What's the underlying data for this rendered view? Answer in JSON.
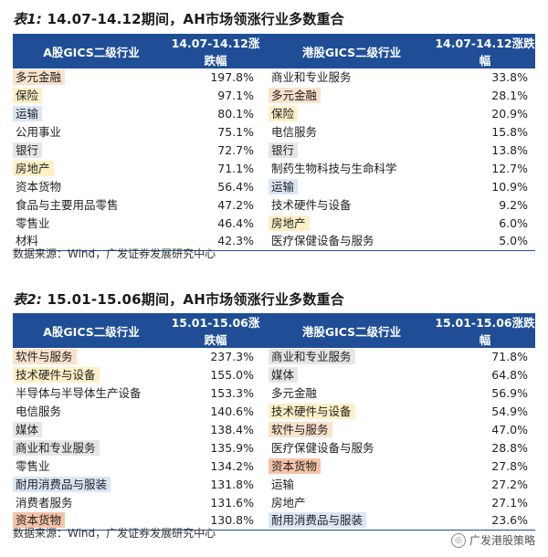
{
  "colors": {
    "header_bg": "#1f4e96",
    "orange": "#fbe2cc",
    "blue": "#dbe6f5",
    "yellow": "#fdf0c6",
    "gray": "#e6e6e6",
    "salmon": "#f5c3a8"
  },
  "table1": {
    "title_prefix": "表1:",
    "title_text": "14.07-14.12期间，AH市场领涨行业多数重合",
    "headers": [
      "A股GICS二级行业",
      "14.07-14.12涨跌幅",
      "港股GICS二级行业",
      "14.07-14.12涨跌幅"
    ],
    "rows": [
      {
        "a_name": "多元金融",
        "a_val": "197.8%",
        "a_color": "orange",
        "h_name": "商业和专业服务",
        "h_val": "33.8%",
        "h_color": "none"
      },
      {
        "a_name": "保险",
        "a_val": "97.1%",
        "a_color": "yellow",
        "h_name": "多元金融",
        "h_val": "28.1%",
        "h_color": "orange"
      },
      {
        "a_name": "运输",
        "a_val": "80.1%",
        "a_color": "blue",
        "h_name": "保险",
        "h_val": "20.9%",
        "h_color": "yellow"
      },
      {
        "a_name": "公用事业",
        "a_val": "75.1%",
        "a_color": "none",
        "h_name": "电信服务",
        "h_val": "15.8%",
        "h_color": "none"
      },
      {
        "a_name": "银行",
        "a_val": "72.7%",
        "a_color": "gray",
        "h_name": "银行",
        "h_val": "13.8%",
        "h_color": "gray"
      },
      {
        "a_name": "房地产",
        "a_val": "71.1%",
        "a_color": "yellow",
        "h_name": "制药生物科技与生命科学",
        "h_val": "12.7%",
        "h_color": "none"
      },
      {
        "a_name": "资本货物",
        "a_val": "56.4%",
        "a_color": "none",
        "h_name": "运输",
        "h_val": "10.9%",
        "h_color": "blue"
      },
      {
        "a_name": "食品与主要用品零售",
        "a_val": "47.2%",
        "a_color": "none",
        "h_name": "技术硬件与设备",
        "h_val": "9.2%",
        "h_color": "none"
      },
      {
        "a_name": "零售业",
        "a_val": "46.4%",
        "a_color": "none",
        "h_name": "房地产",
        "h_val": "6.0%",
        "h_color": "yellow"
      },
      {
        "a_name": "材料",
        "a_val": "42.3%",
        "a_color": "none",
        "h_name": "医疗保健设备与服务",
        "h_val": "5.0%",
        "h_color": "none"
      }
    ],
    "source": "数据来源：Wind，广发证券发展研究中心"
  },
  "table2": {
    "title_prefix": "表2:",
    "title_text": "15.01-15.06期间，AH市场领涨行业多数重合",
    "headers": [
      "A股GICS二级行业",
      "15.01-15.06涨跌幅",
      "港股GICS二级行业",
      "15.01-15.06涨跌幅"
    ],
    "rows": [
      {
        "a_name": "软件与服务",
        "a_val": "237.3%",
        "a_color": "orange",
        "h_name": "商业和专业服务",
        "h_val": "71.8%",
        "h_color": "gray"
      },
      {
        "a_name": "技术硬件与设备",
        "a_val": "155.0%",
        "a_color": "yellow",
        "h_name": "媒体",
        "h_val": "64.8%",
        "h_color": "gray"
      },
      {
        "a_name": "半导体与半导体生产设备",
        "a_val": "153.3%",
        "a_color": "none",
        "h_name": "多元金融",
        "h_val": "56.9%",
        "h_color": "none"
      },
      {
        "a_name": "电信服务",
        "a_val": "140.6%",
        "a_color": "none",
        "h_name": "技术硬件与设备",
        "h_val": "54.9%",
        "h_color": "yellow"
      },
      {
        "a_name": "媒体",
        "a_val": "138.4%",
        "a_color": "gray",
        "h_name": "软件与服务",
        "h_val": "47.0%",
        "h_color": "orange"
      },
      {
        "a_name": "商业和专业服务",
        "a_val": "135.9%",
        "a_color": "gray",
        "h_name": "医疗保健设备与服务",
        "h_val": "28.8%",
        "h_color": "none"
      },
      {
        "a_name": "零售业",
        "a_val": "134.2%",
        "a_color": "none",
        "h_name": "资本货物",
        "h_val": "27.8%",
        "h_color": "salmon"
      },
      {
        "a_name": "耐用消费品与服装",
        "a_val": "131.8%",
        "a_color": "blue",
        "h_name": "运输",
        "h_val": "27.2%",
        "h_color": "none"
      },
      {
        "a_name": "消费者服务",
        "a_val": "131.6%",
        "a_color": "none",
        "h_name": "房地产",
        "h_val": "27.1%",
        "h_color": "none"
      },
      {
        "a_name": "资本货物",
        "a_val": "130.8%",
        "a_color": "salmon",
        "h_name": "耐用消费品与服装",
        "h_val": "23.6%",
        "h_color": "blue"
      }
    ],
    "source": "数据来源：Wind，广发证券发展研究中心"
  },
  "watermark": {
    "icon": "wechat-icon",
    "text": "广发港股策略"
  }
}
